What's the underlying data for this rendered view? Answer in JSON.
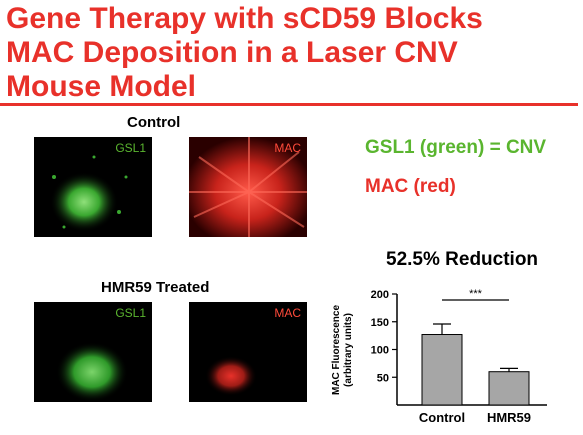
{
  "slide": {
    "title_lines": [
      "Gene Therapy with sCD59 Blocks",
      "MAC Deposition in a Laser CNV",
      "Mouse Model"
    ],
    "colors": {
      "title": "#e8312a",
      "green_stain": "#5ab52f",
      "red_stain": "#e8312a",
      "bar_fill": "#a6a6a6"
    }
  },
  "images": {
    "control_label": "Control",
    "treated_label": "HMR59 Treated",
    "green_tag": "GSL1",
    "red_tag": "MAC"
  },
  "legend": {
    "green": "GSL1 (green) =  CNV",
    "red": "MAC (red)"
  },
  "chart_heading": "52.5% Reduction",
  "chart_data": {
    "type": "bar",
    "categories": [
      "Control",
      "HMR59"
    ],
    "values": [
      127,
      60
    ],
    "errors": [
      19,
      6
    ],
    "ylabel_lines": [
      "MAC Fluorescence",
      "(arbitrary units)"
    ],
    "yticks": [
      50,
      100,
      150,
      200
    ],
    "ylim": [
      0,
      200
    ],
    "significance": "***",
    "grid": false
  }
}
